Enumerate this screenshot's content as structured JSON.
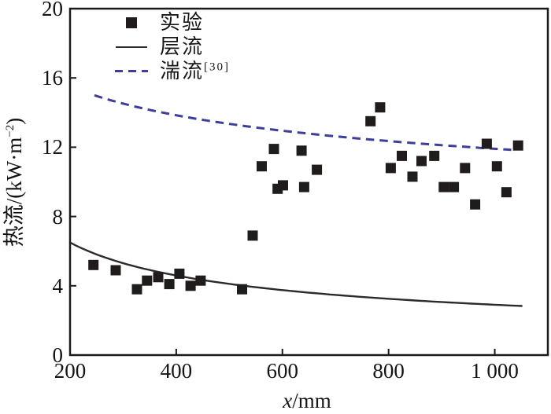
{
  "figure": {
    "background": "#ffffff",
    "frame_color": "#1a1a1a",
    "tick_color": "#1a1a1a"
  },
  "legend": {
    "items": [
      {
        "label": "实验",
        "marker": "square",
        "color": "#201c1c"
      },
      {
        "label": "层流",
        "marker": "solid-line",
        "color": "#2e2a2a"
      },
      {
        "label": "湍流",
        "sup": "[30]",
        "marker": "dashed-line",
        "color": "#3e3e9a"
      }
    ]
  },
  "axes": {
    "xlabel": {
      "var": "x",
      "rest": "/mm"
    },
    "ylabel": {
      "pre": "热流/(kW·m",
      "sup": "−2",
      "post": ")"
    }
  },
  "chart_data": {
    "type": "scatter",
    "title": "",
    "xlabel": "x/mm",
    "ylabel": "热流/(kW·m−2)",
    "xlim": [
      200,
      1100
    ],
    "ylim": [
      0,
      20
    ],
    "grid": false,
    "legend_position": "upper-left-inside",
    "x_ticks": [
      200,
      400,
      600,
      800,
      1000
    ],
    "x_tick_labels": [
      "200",
      "400",
      "600",
      "800",
      "1 000"
    ],
    "y_ticks": [
      0,
      4,
      8,
      12,
      16,
      20
    ],
    "y_tick_labels": [
      "0",
      "4",
      "8",
      "12",
      "16",
      "20"
    ],
    "series": [
      {
        "name": "实验",
        "type": "scatter",
        "marker": "square",
        "marker_size": 13,
        "color": "#201c1c",
        "points": [
          [
            244,
            5.2
          ],
          [
            286,
            4.9
          ],
          [
            326,
            3.8
          ],
          [
            345,
            4.3
          ],
          [
            366,
            4.5
          ],
          [
            387,
            4.1
          ],
          [
            406,
            4.7
          ],
          [
            427,
            4.0
          ],
          [
            446,
            4.3
          ],
          [
            524,
            3.8
          ],
          [
            544,
            6.9
          ],
          [
            561,
            10.9
          ],
          [
            584,
            11.9
          ],
          [
            591,
            9.6
          ],
          [
            601,
            9.8
          ],
          [
            636,
            11.8
          ],
          [
            641,
            9.7
          ],
          [
            665,
            10.7
          ],
          [
            766,
            13.5
          ],
          [
            784,
            14.3
          ],
          [
            804,
            10.8
          ],
          [
            825,
            11.5
          ],
          [
            845,
            10.3
          ],
          [
            862,
            11.2
          ],
          [
            886,
            11.5
          ],
          [
            904,
            9.7
          ],
          [
            923,
            9.7
          ],
          [
            944,
            10.8
          ],
          [
            963,
            8.7
          ],
          [
            985,
            12.2
          ],
          [
            1004,
            10.9
          ],
          [
            1022,
            9.4
          ],
          [
            1044,
            12.1
          ]
        ]
      },
      {
        "name": "层流",
        "type": "line",
        "line_style": "solid",
        "color": "#2e2a2a",
        "line_width": 2.4,
        "model": "power",
        "coeff": 91.9,
        "exponent": -0.5,
        "x_start": 200,
        "x_end": 1052
      },
      {
        "name": "湍流[30]",
        "type": "line",
        "line_style": "dashed",
        "dash": [
          10.5,
          7
        ],
        "color": "#3e3e9a",
        "line_width": 3,
        "model": "power",
        "coeff": 37.1,
        "exponent": -0.1645,
        "x_start": 246,
        "x_end": 1031
      }
    ]
  }
}
